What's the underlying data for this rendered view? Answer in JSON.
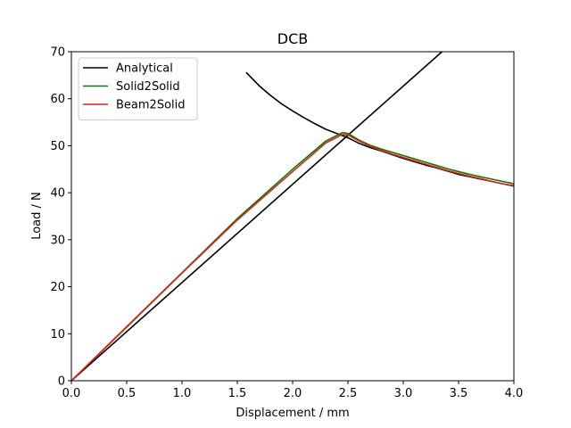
{
  "chart_data": {
    "type": "line",
    "title": "DCB",
    "xlabel": "Displacement / mm",
    "ylabel": "Load / N",
    "xlim": [
      0,
      4
    ],
    "ylim": [
      0,
      70
    ],
    "xticks": [
      0.0,
      0.5,
      1.0,
      1.5,
      2.0,
      2.5,
      3.0,
      3.5,
      4.0
    ],
    "xtick_labels": [
      "0.0",
      "0.5",
      "1.0",
      "1.5",
      "2.0",
      "2.5",
      "3.0",
      "3.5",
      "4.0"
    ],
    "yticks": [
      0,
      10,
      20,
      30,
      40,
      50,
      60,
      70
    ],
    "ytick_labels": [
      "0",
      "10",
      "20",
      "30",
      "40",
      "50",
      "60",
      "70"
    ],
    "grid": false,
    "legend": "top-left",
    "series": [
      {
        "name": "Analytical",
        "color": "#000000",
        "segments": [
          {
            "x": [
              0,
              3.35
            ],
            "y": [
              0,
              70
            ]
          },
          {
            "x": [
              1.58,
              1.7,
              1.8,
              1.9,
              2.0,
              2.1,
              2.2,
              2.3,
              2.4,
              2.5,
              2.6,
              2.7,
              2.8,
              2.9,
              3.0,
              3.1,
              3.2,
              3.3,
              3.4,
              3.5,
              3.6,
              3.7,
              3.8,
              3.9,
              4.0
            ],
            "y": [
              65.6,
              62.7,
              60.7,
              58.9,
              57.4,
              56.0,
              54.7,
              53.5,
              52.6,
              51.7,
              50.5,
              49.6,
              48.9,
              48.1,
              47.3,
              46.6,
              45.9,
              45.3,
              44.6,
              43.9,
              43.4,
              42.9,
              42.4,
              41.9,
              41.4
            ]
          }
        ]
      },
      {
        "name": "Solid2Solid",
        "color": "#008000",
        "segments": [
          {
            "x": [
              0,
              0.5,
              1.0,
              1.5,
              2.0,
              2.3,
              2.45,
              2.5,
              2.6,
              2.7,
              2.8,
              2.9,
              3.0,
              3.1,
              3.2,
              3.3,
              3.4,
              3.5,
              3.6,
              3.7,
              3.8,
              3.9,
              4.0
            ],
            "y": [
              0,
              11.5,
              23.0,
              34.5,
              45.0,
              51.0,
              52.8,
              52.6,
              51.2,
              50.1,
              49.3,
              48.6,
              47.9,
              47.2,
              46.5,
              45.8,
              45.1,
              44.5,
              43.9,
              43.4,
              42.9,
              42.4,
              41.9
            ]
          }
        ]
      },
      {
        "name": "Beam2Solid",
        "color": "#e0201c",
        "segments": [
          {
            "x": [
              0,
              0.5,
              1.0,
              1.5,
              2.0,
              2.3,
              2.45,
              2.5,
              2.6,
              2.7,
              2.8,
              2.9,
              3.0,
              3.1,
              3.2,
              3.3,
              3.4,
              3.5,
              3.6,
              3.7,
              3.8,
              3.9,
              4.0
            ],
            "y": [
              0,
              11.4,
              22.9,
              34.2,
              44.5,
              50.6,
              52.4,
              52.3,
              51.0,
              49.9,
              49.0,
              48.2,
              47.5,
              46.8,
              46.1,
              45.4,
              44.7,
              44.1,
              43.5,
              43.0,
              42.4,
              41.9,
              41.5
            ]
          }
        ]
      }
    ]
  }
}
